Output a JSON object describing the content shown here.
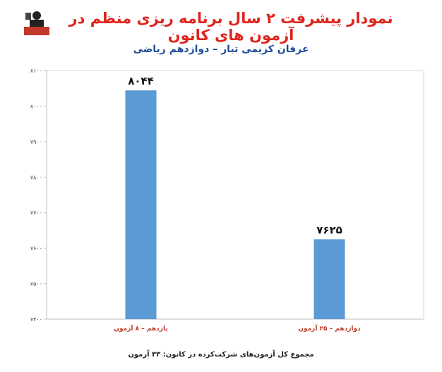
{
  "header": {
    "title": "نمودار پیشرفت ۲ سال برنامه ریزی منظم در آزمون های کانون",
    "subtitle": "عرفان کریمی تبار – دوازدهم ریاضی"
  },
  "footer": {
    "note": "مجموع کل آزمون‌های شرکت‌کرده در کانون:  ۳۳ آزمون"
  },
  "colors": {
    "title": "#e0241c",
    "subtitle": "#1f4e9a",
    "bar": "#5b9bd5"
  },
  "chart_data": {
    "type": "bar",
    "title": "",
    "xlabel": "",
    "ylabel": "",
    "categories": [
      "یازدهم – ۸ آزمون",
      "دوازدهم – ۲۵ آزمون"
    ],
    "values": [
      8044,
      7625
    ],
    "value_labels": [
      "۸۰۴۴",
      "۷۶۲۵"
    ],
    "ylim": [
      7400,
      8100
    ],
    "yticks": [
      7400,
      7500,
      7600,
      7700,
      7800,
      7900,
      8000,
      8100
    ],
    "ytick_labels": [
      "۷۴۰۰",
      "۷۵۰۰",
      "۷۶۰۰",
      "۷۷۰۰",
      "۷۸۰۰",
      "۷۹۰۰",
      "۸۰۰۰",
      "۸۱۰۰"
    ],
    "grid": false,
    "legend": "none"
  }
}
